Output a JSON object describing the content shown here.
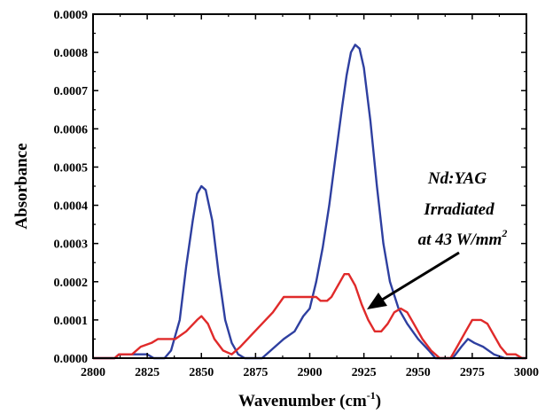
{
  "chart_data": {
    "type": "line",
    "title": "",
    "xlabel": "Wavenumber (cm",
    "xlabel_sup": "-1",
    "xlabel_end": ")",
    "ylabel": "Absorbance",
    "xlim": [
      2800,
      3000
    ],
    "ylim": [
      0,
      0.0009
    ],
    "x_ticks": [
      "2800",
      "2825",
      "2850",
      "2875",
      "2900",
      "2925",
      "2950",
      "2975",
      "3000"
    ],
    "y_ticks": [
      "0.0000",
      "0.0001",
      "0.0002",
      "0.0003",
      "0.0004",
      "0.0005",
      "0.0006",
      "0.0007",
      "0.0008",
      "0.0009"
    ],
    "grid": false,
    "annotation": {
      "line1": "Nd:YAG",
      "line2": "Irradiated",
      "line3": "at 43 W/mm",
      "line3_sup": "2"
    },
    "series": [
      {
        "color": "#2e3fa0",
        "points": [
          [
            2800,
            0
          ],
          [
            2810,
            0
          ],
          [
            2812,
            1e-05
          ],
          [
            2825,
            1e-05
          ],
          [
            2828,
            0
          ],
          [
            2833,
            0
          ],
          [
            2836,
            2e-05
          ],
          [
            2840,
            0.0001
          ],
          [
            2843,
            0.00024
          ],
          [
            2846,
            0.00036
          ],
          [
            2848,
            0.00043
          ],
          [
            2850,
            0.00045
          ],
          [
            2852,
            0.00044
          ],
          [
            2855,
            0.00036
          ],
          [
            2858,
            0.00022
          ],
          [
            2861,
            0.0001
          ],
          [
            2864,
            4e-05
          ],
          [
            2867,
            1e-05
          ],
          [
            2870,
            0
          ],
          [
            2878,
            0
          ],
          [
            2882,
            2e-05
          ],
          [
            2888,
            5e-05
          ],
          [
            2893,
            7e-05
          ],
          [
            2897,
            0.00011
          ],
          [
            2900,
            0.00013
          ],
          [
            2903,
            0.0002
          ],
          [
            2906,
            0.00029
          ],
          [
            2909,
            0.0004
          ],
          [
            2912,
            0.00053
          ],
          [
            2915,
            0.00066
          ],
          [
            2917,
            0.00074
          ],
          [
            2919,
            0.0008
          ],
          [
            2921,
            0.00082
          ],
          [
            2923,
            0.00081
          ],
          [
            2925,
            0.00076
          ],
          [
            2928,
            0.00062
          ],
          [
            2931,
            0.00045
          ],
          [
            2934,
            0.0003
          ],
          [
            2937,
            0.0002
          ],
          [
            2941,
            0.00013
          ],
          [
            2945,
            9e-05
          ],
          [
            2950,
            5e-05
          ],
          [
            2955,
            2e-05
          ],
          [
            2958,
            0
          ],
          [
            2966,
            0
          ],
          [
            2970,
            3e-05
          ],
          [
            2973,
            5e-05
          ],
          [
            2976,
            4e-05
          ],
          [
            2980,
            3e-05
          ],
          [
            2985,
            1e-05
          ],
          [
            2990,
            0
          ],
          [
            3000,
            0
          ]
        ]
      },
      {
        "color": "#e02a2a",
        "points": [
          [
            2800,
            0
          ],
          [
            2810,
            0
          ],
          [
            2812,
            1e-05
          ],
          [
            2818,
            1e-05
          ],
          [
            2822,
            3e-05
          ],
          [
            2827,
            4e-05
          ],
          [
            2830,
            5e-05
          ],
          [
            2838,
            5e-05
          ],
          [
            2843,
            7e-05
          ],
          [
            2848,
            0.0001
          ],
          [
            2850,
            0.00011
          ],
          [
            2853,
            9e-05
          ],
          [
            2856,
            5e-05
          ],
          [
            2860,
            2e-05
          ],
          [
            2864,
            1e-05
          ],
          [
            2868,
            3e-05
          ],
          [
            2873,
            6e-05
          ],
          [
            2878,
            9e-05
          ],
          [
            2883,
            0.00012
          ],
          [
            2888,
            0.00016
          ],
          [
            2898,
            0.00016
          ],
          [
            2903,
            0.00016
          ],
          [
            2905,
            0.00015
          ],
          [
            2908,
            0.00015
          ],
          [
            2910,
            0.00016
          ],
          [
            2913,
            0.00019
          ],
          [
            2916,
            0.00022
          ],
          [
            2918,
            0.00022
          ],
          [
            2921,
            0.00019
          ],
          [
            2924,
            0.00014
          ],
          [
            2927,
            0.0001
          ],
          [
            2930,
            7e-05
          ],
          [
            2933,
            7e-05
          ],
          [
            2936,
            9e-05
          ],
          [
            2939,
            0.00012
          ],
          [
            2942,
            0.00013
          ],
          [
            2945,
            0.00012
          ],
          [
            2948,
            9e-05
          ],
          [
            2952,
            5e-05
          ],
          [
            2956,
            2e-05
          ],
          [
            2960,
            0
          ],
          [
            2965,
            0
          ],
          [
            2968,
            3e-05
          ],
          [
            2972,
            7e-05
          ],
          [
            2975,
            0.0001
          ],
          [
            2979,
            0.0001
          ],
          [
            2982,
            9e-05
          ],
          [
            2985,
            6e-05
          ],
          [
            2988,
            3e-05
          ],
          [
            2991,
            1e-05
          ],
          [
            2995,
            1e-05
          ],
          [
            2998,
            0
          ],
          [
            3000,
            0
          ]
        ]
      }
    ]
  }
}
